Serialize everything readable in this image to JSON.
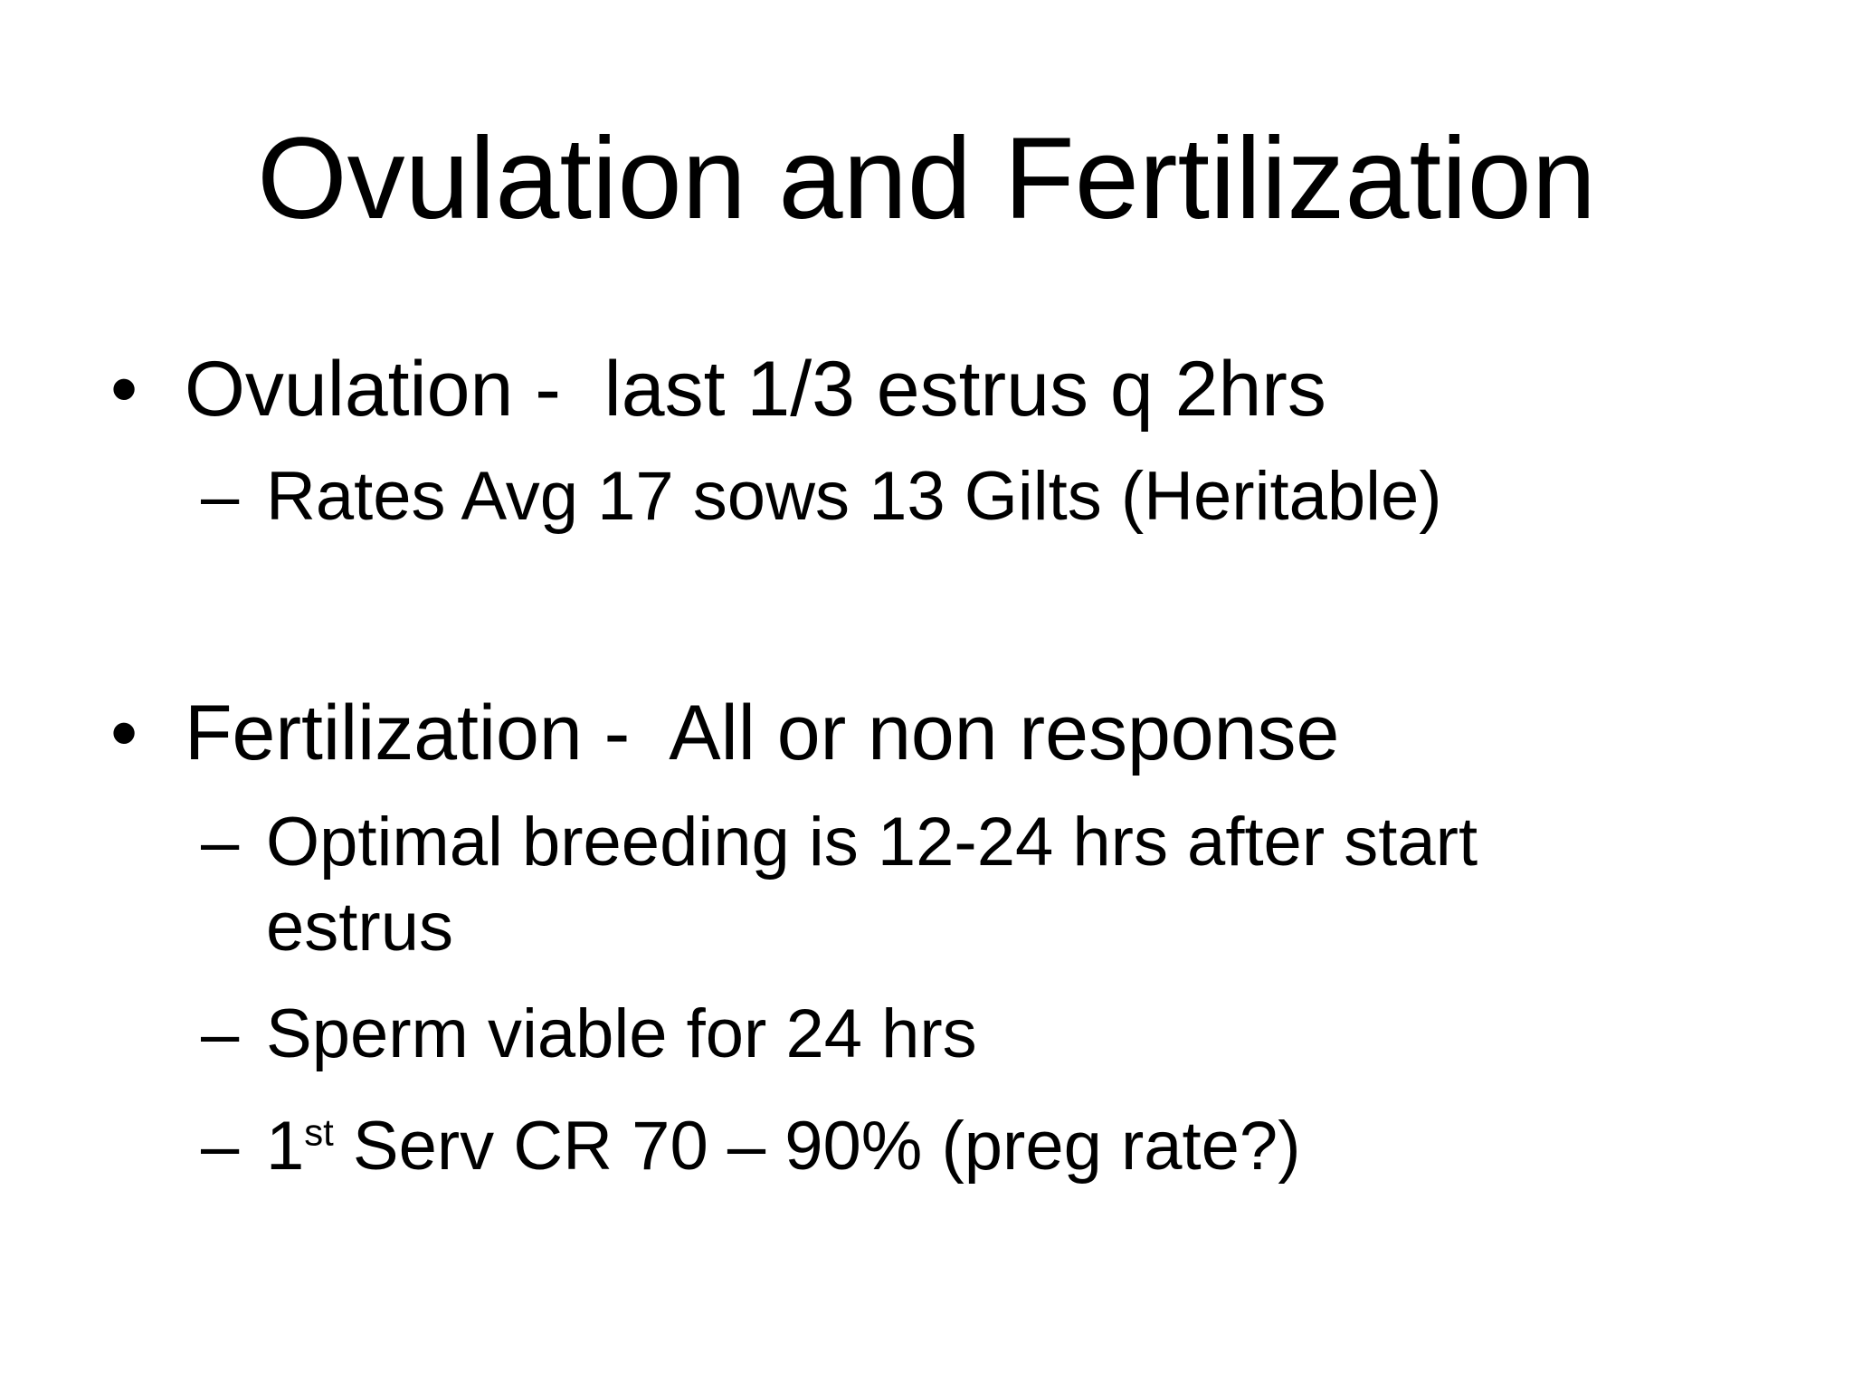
{
  "slide": {
    "title": "Ovulation and Fertilization",
    "bullets": [
      {
        "marker": "•",
        "text": "Ovulation -  last 1/3 estrus q 2hrs",
        "subs": [
          {
            "marker": "–",
            "text": "Rates Avg 17 sows 13 Gilts (Heritable)"
          }
        ]
      },
      {
        "marker": "•",
        "text": "Fertilization -  All or non response",
        "subs": [
          {
            "marker": "–",
            "text": "Optimal breeding is 12-24 hrs after start estrus"
          },
          {
            "marker": "–",
            "text": "Sperm viable for 24 hrs"
          },
          {
            "marker": "–",
            "pre": "1",
            "sup": "st",
            "post": " Serv CR 70 – 90% (preg rate?)"
          }
        ]
      }
    ]
  }
}
